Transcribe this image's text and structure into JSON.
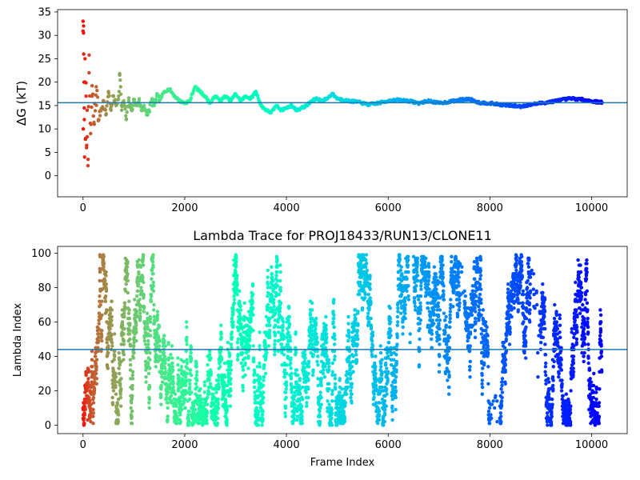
{
  "chart_data": [
    {
      "type": "scatter",
      "title": "",
      "xlabel": "",
      "ylabel": "ΔG (kT)",
      "xlim": [
        -500,
        10700
      ],
      "ylim": [
        -4.5,
        35.5
      ],
      "xticks": [
        0,
        2000,
        4000,
        6000,
        8000,
        10000
      ],
      "yticks": [
        0,
        5,
        10,
        15,
        20,
        25,
        30,
        35
      ],
      "xtick_labels": [
        "0",
        "2000",
        "4000",
        "6000",
        "8000",
        "10000"
      ],
      "ytick_labels": [
        "0",
        "5",
        "10",
        "15",
        "20",
        "25",
        "30",
        "35"
      ],
      "hline": 15.6,
      "hline_color": "#1f77b4",
      "colormap": "rainbow (red at start → violet at end)",
      "n_frames": 10200,
      "series": [
        {
          "x": [
            0,
            5,
            10,
            15,
            20,
            25,
            30,
            40,
            50,
            60,
            70,
            80,
            100,
            120,
            150,
            180,
            220,
            260,
            300,
            350,
            400,
            450,
            500,
            550,
            600,
            650,
            700,
            720,
            740,
            760,
            800,
            850,
            900,
            950,
            1000,
            1050,
            1100,
            1150,
            1200,
            1250,
            1300,
            1350,
            1400,
            1450,
            1500,
            1600,
            1700,
            1800,
            1900,
            2000,
            2100,
            2200,
            2300,
            2400,
            2500,
            2600,
            2700,
            2800,
            2900,
            3000,
            3100,
            3200,
            3300,
            3400,
            3500,
            3600,
            3700,
            3800,
            3900,
            4000,
            4100,
            4200,
            4300,
            4400,
            4500,
            4600,
            4700,
            4800,
            4900,
            5000,
            5200,
            5400,
            5600,
            5800,
            6000,
            6200,
            6400,
            6600,
            6800,
            7000,
            7200,
            7400,
            7600,
            7800,
            8000,
            8200,
            8400,
            8600,
            8800,
            9000,
            9200,
            9400,
            9600,
            9800,
            10000,
            10200
          ],
          "y": [
            33,
            10,
            30.5,
            26,
            20,
            12,
            4,
            25,
            8,
            17,
            6,
            14,
            3.5,
            22,
            9,
            17,
            11,
            19,
            12,
            14,
            16,
            13,
            18,
            14,
            17,
            15,
            17,
            21.5,
            19,
            14,
            16,
            12,
            16,
            14,
            16,
            15,
            16,
            14,
            15,
            13,
            14,
            16,
            15,
            17,
            16,
            18,
            18.5,
            17,
            16,
            15.5,
            16,
            19,
            18,
            17,
            15.5,
            17,
            16,
            17,
            16,
            17.5,
            16,
            17,
            16.5,
            18,
            15,
            14,
            13.5,
            15,
            14,
            14.5,
            15,
            14,
            14.5,
            15,
            16,
            16.5,
            16,
            16.5,
            17.5,
            16.5,
            16,
            15.8,
            15.2,
            15.5,
            16,
            16.2,
            16,
            15.5,
            16,
            15.5,
            15.8,
            16.2,
            16.4,
            15.6,
            15.5,
            15.2,
            15,
            14.8,
            15.2,
            15.5,
            15.8,
            16.2,
            16.5,
            16.3,
            15.9,
            15.7
          ]
        }
      ]
    },
    {
      "type": "scatter",
      "title": "Lambda Trace for PROJ18433/RUN13/CLONE11",
      "xlabel": "Frame Index",
      "ylabel": "Lambda Index",
      "xlim": [
        -500,
        10700
      ],
      "ylim": [
        -4.95,
        103.95
      ],
      "xticks": [
        0,
        2000,
        4000,
        6000,
        8000,
        10000
      ],
      "yticks": [
        0,
        20,
        40,
        60,
        80,
        100
      ],
      "xtick_labels": [
        "0",
        "2000",
        "4000",
        "6000",
        "8000",
        "10000"
      ],
      "ytick_labels": [
        "0",
        "20",
        "40",
        "60",
        "80",
        "100"
      ],
      "hline": 44,
      "hline_color": "#1f77b4",
      "colormap": "rainbow (red at start → violet at end)",
      "n_frames": 10200,
      "lambda_range": [
        0,
        99
      ]
    }
  ]
}
